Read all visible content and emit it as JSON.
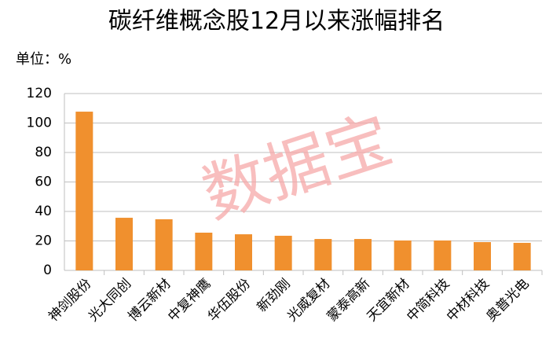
{
  "chart_data": {
    "type": "bar",
    "title": "碳纤维概念股12月以来涨幅排名",
    "unit_label": "单位：%",
    "watermark": "数据宝",
    "categories": [
      "神剑股份",
      "光大同创",
      "博云新材",
      "中复神鹰",
      "华伍股份",
      "新劲刚",
      "光威复材",
      "蒙泰高新",
      "天宜新材",
      "中简科技",
      "中材科技",
      "奥普光电"
    ],
    "values": [
      107.7,
      35.7,
      34.7,
      25.6,
      24.5,
      23.5,
      21.3,
      21.3,
      20.3,
      20.3,
      19.2,
      18.7
    ],
    "color": "#f0902e",
    "ylim": [
      0,
      120
    ],
    "yticks": [
      0,
      20,
      40,
      60,
      80,
      100,
      120
    ],
    "grid": true
  }
}
